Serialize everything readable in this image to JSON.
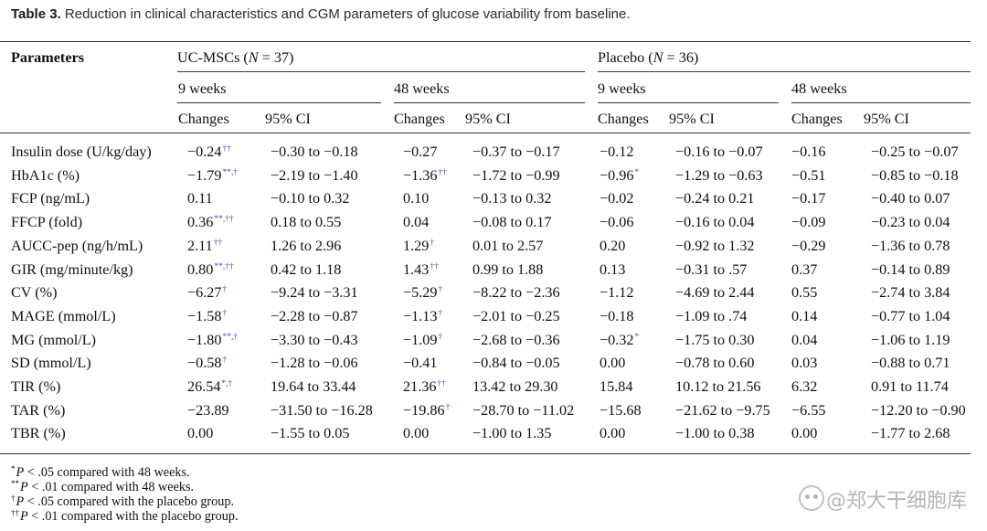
{
  "caption": {
    "label": "Table 3.",
    "text": " Reduction in clinical characteristics and CGM parameters of glucose variability from baseline."
  },
  "header": {
    "parameters": "Parameters",
    "group1": {
      "name": "UC-MSCs (",
      "n_italic": "N",
      "n_value": " = 37)"
    },
    "group2": {
      "name": "Placebo (",
      "n_italic": "N",
      "n_value": " = 36)"
    },
    "weeks9": "9 weeks",
    "weeks48": "48 weeks",
    "changes": "Changes",
    "ci": "95% CI"
  },
  "rows": [
    {
      "param": "Insulin dose (U/kg/day)",
      "cells": [
        [
          "−0.24",
          "††"
        ],
        [
          "−0.30 to −0.18",
          ""
        ],
        [
          "−0.27",
          ""
        ],
        [
          "−0.37 to −0.17",
          ""
        ],
        [
          "−0.12",
          ""
        ],
        [
          "−0.16 to −0.07",
          ""
        ],
        [
          "−0.16",
          ""
        ],
        [
          "−0.25 to −0.07",
          ""
        ]
      ]
    },
    {
      "param": "HbA1c (%)",
      "cells": [
        [
          "−1.79",
          "**,†"
        ],
        [
          "−2.19 to −1.40",
          ""
        ],
        [
          "−1.36",
          "††"
        ],
        [
          "−1.72 to −0.99",
          ""
        ],
        [
          "−0.96",
          "*"
        ],
        [
          "−1.29 to −0.63",
          ""
        ],
        [
          "−0.51",
          ""
        ],
        [
          "−0.85 to −0.18",
          ""
        ]
      ]
    },
    {
      "param": "FCP (ng/mL)",
      "cells": [
        [
          "0.11",
          ""
        ],
        [
          "−0.10 to 0.32",
          ""
        ],
        [
          "0.10",
          ""
        ],
        [
          "−0.13 to 0.32",
          ""
        ],
        [
          "−0.02",
          ""
        ],
        [
          "−0.24 to 0.21",
          ""
        ],
        [
          "−0.17",
          ""
        ],
        [
          "−0.40 to 0.07",
          ""
        ]
      ]
    },
    {
      "param": "FFCP (fold)",
      "cells": [
        [
          "0.36",
          "**,††"
        ],
        [
          "0.18 to 0.55",
          ""
        ],
        [
          "0.04",
          ""
        ],
        [
          "−0.08 to 0.17",
          ""
        ],
        [
          "−0.06",
          ""
        ],
        [
          "−0.16 to 0.04",
          ""
        ],
        [
          "−0.09",
          ""
        ],
        [
          "−0.23 to 0.04",
          ""
        ]
      ]
    },
    {
      "param": "AUCC-pep (ng/h/mL)",
      "cells": [
        [
          "2.11",
          "††"
        ],
        [
          "1.26 to 2.96",
          ""
        ],
        [
          "1.29",
          "†"
        ],
        [
          "0.01 to 2.57",
          ""
        ],
        [
          "0.20",
          ""
        ],
        [
          "−0.92 to 1.32",
          ""
        ],
        [
          "−0.29",
          ""
        ],
        [
          "−1.36 to 0.78",
          ""
        ]
      ]
    },
    {
      "param": "GIR (mg/minute/kg)",
      "cells": [
        [
          "0.80",
          "**,††"
        ],
        [
          "0.42 to 1.18",
          ""
        ],
        [
          "1.43",
          "††"
        ],
        [
          "0.99 to 1.88",
          ""
        ],
        [
          "0.13",
          ""
        ],
        [
          "−0.31 to .57",
          ""
        ],
        [
          "0.37",
          ""
        ],
        [
          "−0.14 to 0.89",
          ""
        ]
      ]
    },
    {
      "param": "CV (%)",
      "cells": [
        [
          "−6.27",
          "†"
        ],
        [
          "−9.24 to −3.31",
          ""
        ],
        [
          "−5.29",
          "†"
        ],
        [
          "−8.22 to −2.36",
          ""
        ],
        [
          "−1.12",
          ""
        ],
        [
          "−4.69 to 2.44",
          ""
        ],
        [
          "0.55",
          ""
        ],
        [
          "−2.74 to 3.84",
          ""
        ]
      ]
    },
    {
      "param": "MAGE (mmol/L)",
      "cells": [
        [
          "−1.58",
          "†"
        ],
        [
          "−2.28 to −0.87",
          ""
        ],
        [
          "−1.13",
          "†"
        ],
        [
          "−2.01 to −0.25",
          ""
        ],
        [
          "−0.18",
          ""
        ],
        [
          "−1.09 to .74",
          ""
        ],
        [
          "0.14",
          ""
        ],
        [
          "−0.77 to 1.04",
          ""
        ]
      ]
    },
    {
      "param": "MG (mmol/L)",
      "cells": [
        [
          "−1.80",
          "**,†"
        ],
        [
          "−3.30 to −0.43",
          ""
        ],
        [
          "−1.09",
          "†"
        ],
        [
          "−2.68 to −0.36",
          ""
        ],
        [
          "−0.32",
          "*"
        ],
        [
          "−1.75 to 0.30",
          ""
        ],
        [
          "0.04",
          ""
        ],
        [
          "−1.06 to 1.19",
          ""
        ]
      ]
    },
    {
      "param": "SD (mmol/L)",
      "cells": [
        [
          "−0.58",
          "†"
        ],
        [
          "−1.28 to −0.06",
          ""
        ],
        [
          "−0.41",
          ""
        ],
        [
          "−0.84 to −0.05",
          ""
        ],
        [
          "0.00",
          ""
        ],
        [
          "−0.78 to 0.60",
          ""
        ],
        [
          "0.03",
          ""
        ],
        [
          "−0.88 to 0.71",
          ""
        ]
      ]
    },
    {
      "param": "TIR (%)",
      "cells": [
        [
          "26.54",
          "*,†"
        ],
        [
          "19.64 to 33.44",
          ""
        ],
        [
          "21.36",
          "††"
        ],
        [
          "13.42 to 29.30",
          ""
        ],
        [
          "15.84",
          ""
        ],
        [
          "10.12 to 21.56",
          ""
        ],
        [
          "6.32",
          ""
        ],
        [
          "0.91 to 11.74",
          ""
        ]
      ]
    },
    {
      "param": "TAR (%)",
      "cells": [
        [
          "−23.89",
          ""
        ],
        [
          "−31.50 to −16.28",
          ""
        ],
        [
          "−19.86",
          "†"
        ],
        [
          "−28.70 to −11.02",
          ""
        ],
        [
          "−15.68",
          ""
        ],
        [
          "−21.62 to −9.75",
          ""
        ],
        [
          "−6.55",
          ""
        ],
        [
          "−12.20 to −0.90",
          ""
        ]
      ]
    },
    {
      "param": "TBR (%)",
      "cells": [
        [
          "0.00",
          ""
        ],
        [
          "−1.55 to 0.05",
          ""
        ],
        [
          "0.00",
          ""
        ],
        [
          "−1.00 to 1.35",
          ""
        ],
        [
          "0.00",
          ""
        ],
        [
          "−1.00 to 0.38",
          ""
        ],
        [
          "0.00",
          ""
        ],
        [
          "−1.77 to 2.68",
          ""
        ]
      ]
    }
  ],
  "footnotes": [
    {
      "mark": "*",
      "p": "P",
      "text": " < .05 compared with 48 weeks."
    },
    {
      "mark": "**",
      "p": "P",
      "text": " < .01 compared with 48 weeks."
    },
    {
      "mark": "†",
      "p": "P",
      "text": " < .05 compared with the placebo group."
    },
    {
      "mark": "††",
      "p": "P",
      "text": " < .01 compared with the placebo group."
    }
  ],
  "watermark": "@郑大干细胞库"
}
